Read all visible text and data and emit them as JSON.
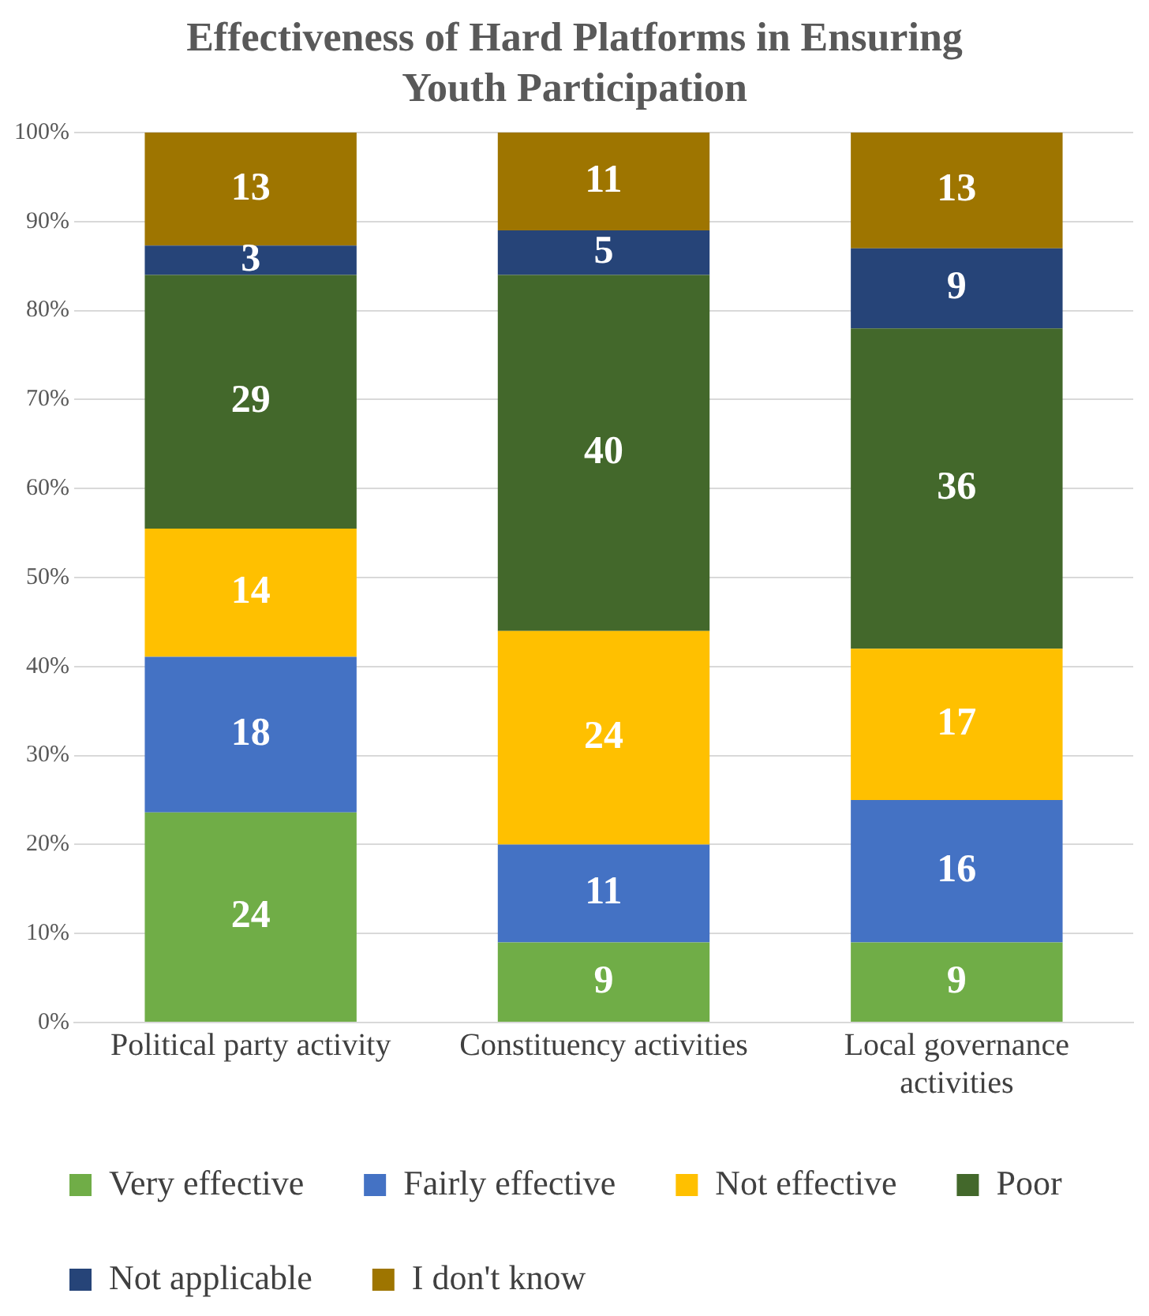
{
  "chart_data": {
    "type": "bar",
    "title": "Effectiveness of Hard Platforms in Ensuring Youth Participation",
    "categories": [
      "Political party activity",
      "Constituency activities",
      "Local governance activities"
    ],
    "stacked": true,
    "series": [
      {
        "name": "Very effective",
        "color": "#70ad47",
        "values": [
          23.6,
          9,
          9
        ],
        "value_labels": [
          "24",
          "9",
          "9"
        ]
      },
      {
        "name": "Fairly effective",
        "color": "#4472c4",
        "values": [
          17.5,
          11,
          16
        ],
        "value_labels": [
          "18",
          "11",
          "16"
        ]
      },
      {
        "name": "Not effective",
        "color": "#ffc000",
        "values": [
          14.4,
          24,
          17
        ],
        "value_labels": [
          "14",
          "24",
          "17"
        ]
      },
      {
        "name": "Poor",
        "color": "#43682b",
        "values": [
          28.5,
          40,
          36
        ],
        "value_labels": [
          "29",
          "40",
          "36"
        ]
      },
      {
        "name": "Not applicable",
        "color": "#264478",
        "values": [
          3.3,
          5,
          9
        ],
        "value_labels": [
          "3",
          "5",
          "9"
        ]
      },
      {
        "name": "I don't know",
        "color": "#9e7500",
        "values": [
          12.7,
          11,
          13
        ],
        "value_labels": [
          "13",
          "11",
          "13"
        ]
      }
    ],
    "ylim": [
      0,
      100
    ],
    "yticks": [
      {
        "value": 0,
        "label": "0%"
      },
      {
        "value": 10,
        "label": "10%"
      },
      {
        "value": 20,
        "label": "20%"
      },
      {
        "value": 30,
        "label": "30%"
      },
      {
        "value": 40,
        "label": "40%"
      },
      {
        "value": 50,
        "label": "50%"
      },
      {
        "value": 60,
        "label": "60%"
      },
      {
        "value": 70,
        "label": "70%"
      },
      {
        "value": 80,
        "label": "80%"
      },
      {
        "value": 90,
        "label": "90%"
      },
      {
        "value": 100,
        "label": "100%"
      }
    ],
    "grid": "y",
    "legend": "bottom"
  }
}
